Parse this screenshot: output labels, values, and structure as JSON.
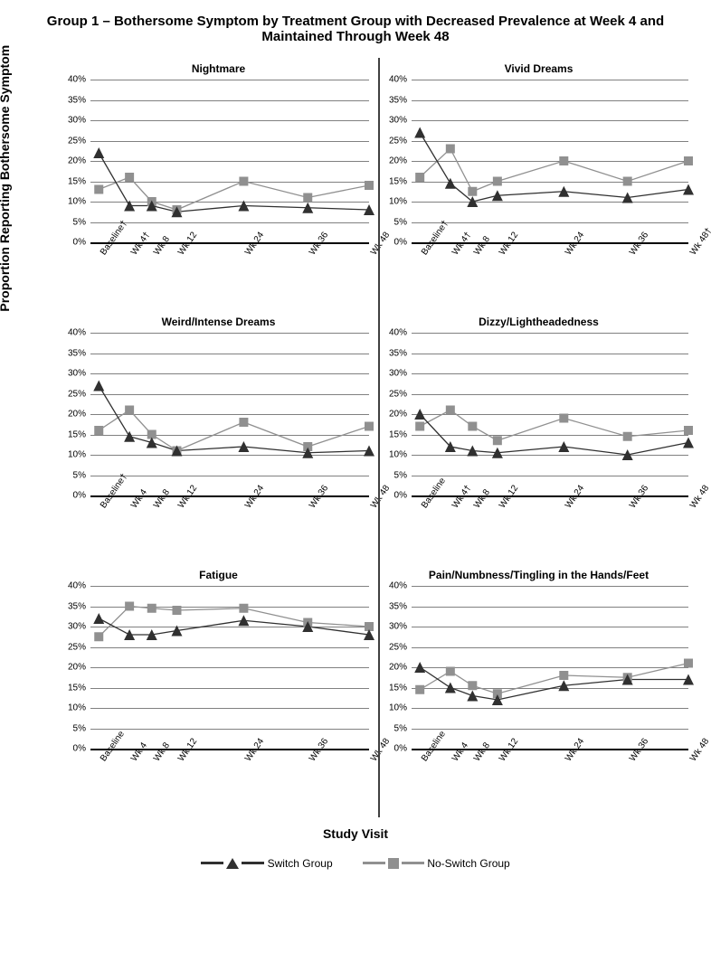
{
  "title": "Group 1 – Bothersome Symptom by Treatment Group with Decreased Prevalence at Week 4 and Maintained Through Week 48",
  "y_axis_label": "Proportion Reporting Bothersome Symptom",
  "x_axis_label": "Study Visit",
  "y_ticks": [
    "0%",
    "5%",
    "10%",
    "15%",
    "20%",
    "25%",
    "30%",
    "35%",
    "40%"
  ],
  "y_tick_values": [
    0,
    5,
    10,
    15,
    20,
    25,
    30,
    35,
    40
  ],
  "ylim": [
    0,
    40
  ],
  "x_positions": [
    3,
    14,
    22,
    31,
    55,
    78,
    100
  ],
  "colors": {
    "switch": "#303030",
    "noswitch": "#909090",
    "grid": "#808080",
    "background": "#ffffff"
  },
  "marker_size": {
    "triangle": 6,
    "square": 5
  },
  "line_width": 2.5,
  "legend": {
    "switch": "Switch Group",
    "noswitch": "No-Switch Group"
  },
  "panels": [
    {
      "title": "Nightmare",
      "x_labels": [
        "Baseline†",
        "Wk 4†",
        "Wk 8",
        "Wk 12",
        "Wk 24",
        "Wk 36",
        "Wk 48"
      ],
      "switch": [
        22,
        9,
        9,
        7.5,
        9,
        8.5,
        8
      ],
      "noswitch": [
        13,
        16,
        10,
        8,
        15,
        11,
        14
      ]
    },
    {
      "title": "Vivid Dreams",
      "x_labels": [
        "Baseline†",
        "Wk 4†",
        "Wk 8",
        "Wk 12",
        "Wk 24",
        "Wk 36",
        "Wk 48†"
      ],
      "switch": [
        27,
        14.5,
        10,
        11.5,
        12.5,
        11,
        13
      ],
      "noswitch": [
        16,
        23,
        12.5,
        15,
        20,
        15,
        20
      ]
    },
    {
      "title": "Weird/Intense Dreams",
      "x_labels": [
        "Baseline†",
        "Wk 4",
        "Wk 8",
        "Wk 12",
        "Wk 24",
        "Wk 36",
        "Wk 48"
      ],
      "switch": [
        27,
        14.5,
        13,
        11,
        12,
        10.5,
        11
      ],
      "noswitch": [
        16,
        21,
        15,
        11,
        18,
        12,
        17
      ]
    },
    {
      "title": "Dizzy/Lightheadedness",
      "x_labels": [
        "Baseline",
        "Wk 4†",
        "Wk 8",
        "Wk 12",
        "Wk 24",
        "Wk 36",
        "Wk 48"
      ],
      "switch": [
        20,
        12,
        11,
        10.5,
        12,
        10,
        13
      ],
      "noswitch": [
        17,
        21,
        17,
        13.5,
        19,
        14.5,
        16
      ]
    },
    {
      "title": "Fatigue",
      "x_labels": [
        "Baseline",
        "Wk 4",
        "Wk 8",
        "Wk 12",
        "Wk 24",
        "Wk 36",
        "Wk 48"
      ],
      "switch": [
        32,
        28,
        28,
        29,
        31.5,
        30,
        28
      ],
      "noswitch": [
        27.5,
        35,
        34.5,
        34,
        34.5,
        31,
        30
      ]
    },
    {
      "title": "Pain/Numbness/Tingling  in the Hands/Feet",
      "x_labels": [
        "Baseline",
        "Wk 4",
        "Wk 8",
        "Wk 12",
        "Wk 24",
        "Wk 36",
        "Wk 48"
      ],
      "switch": [
        20,
        15,
        13,
        12,
        15.5,
        17,
        17
      ],
      "noswitch": [
        14.5,
        19,
        15.5,
        13.5,
        18,
        17.5,
        21
      ]
    }
  ]
}
